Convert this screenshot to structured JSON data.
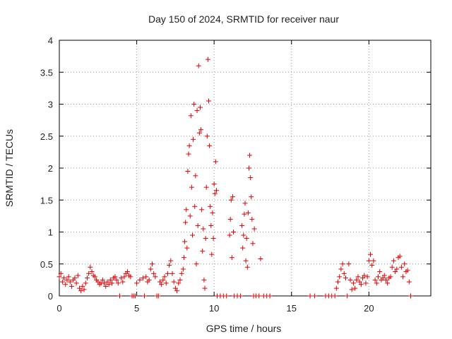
{
  "chart_data": {
    "type": "scatter",
    "title": "Day 150 of 2024, SRMTID for receiver naur",
    "xlabel": "GPS time / hours",
    "ylabel": "SRMTID / TECUs",
    "xlim": [
      0,
      24
    ],
    "ylim": [
      0,
      4
    ],
    "xticks": [
      0,
      5,
      10,
      15,
      20
    ],
    "yticks": [
      0,
      0.5,
      1,
      1.5,
      2,
      2.5,
      3,
      3.5,
      4
    ],
    "ytick_labels": [
      "0",
      "0.5",
      "1",
      "1.5",
      "2",
      "2.5",
      "3",
      "3.5",
      "4"
    ],
    "grid": true,
    "marker": "+",
    "color": "#dd0000",
    "series": [
      {
        "name": "SRMTID",
        "points": [
          [
            0.0,
            0.3
          ],
          [
            0.1,
            0.35
          ],
          [
            0.2,
            0.22
          ],
          [
            0.3,
            0.28
          ],
          [
            0.4,
            0.18
          ],
          [
            0.5,
            0.25
          ],
          [
            0.6,
            0.3
          ],
          [
            0.7,
            0.22
          ],
          [
            0.8,
            0.15
          ],
          [
            0.9,
            0.25
          ],
          [
            1.0,
            0.28
          ],
          [
            1.1,
            0.2
          ],
          [
            1.2,
            0.32
          ],
          [
            1.3,
            0.12
          ],
          [
            1.4,
            0.08
          ],
          [
            1.5,
            0.15
          ],
          [
            1.6,
            0.1
          ],
          [
            1.7,
            0.2
          ],
          [
            1.8,
            0.28
          ],
          [
            1.9,
            0.35
          ],
          [
            2.0,
            0.45
          ],
          [
            2.1,
            0.38
          ],
          [
            2.2,
            0.32
          ],
          [
            2.3,
            0.3
          ],
          [
            2.4,
            0.25
          ],
          [
            2.5,
            0.22
          ],
          [
            2.6,
            0.18
          ],
          [
            2.7,
            0.2
          ],
          [
            2.8,
            0.25
          ],
          [
            2.9,
            0.2
          ],
          [
            3.0,
            0.15
          ],
          [
            3.1,
            0.22
          ],
          [
            3.2,
            0.18
          ],
          [
            3.3,
            0.25
          ],
          [
            3.4,
            0.2
          ],
          [
            3.5,
            0.28
          ],
          [
            3.6,
            0.3
          ],
          [
            3.7,
            0.25
          ],
          [
            3.8,
            0.2
          ],
          [
            3.9,
            0.0
          ],
          [
            4.0,
            0.28
          ],
          [
            4.1,
            0.22
          ],
          [
            4.2,
            0.3
          ],
          [
            4.3,
            0.35
          ],
          [
            4.4,
            0.38
          ],
          [
            4.5,
            0.32
          ],
          [
            4.6,
            0.3
          ],
          [
            4.7,
            0.0
          ],
          [
            4.8,
            0.0
          ],
          [
            4.9,
            0.0
          ],
          [
            5.0,
            0.2
          ],
          [
            5.2,
            0.25
          ],
          [
            5.4,
            0.28
          ],
          [
            5.5,
            0.0
          ],
          [
            5.6,
            0.3
          ],
          [
            5.7,
            0.22
          ],
          [
            5.8,
            0.25
          ],
          [
            5.9,
            0.42
          ],
          [
            6.0,
            0.5
          ],
          [
            6.1,
            0.35
          ],
          [
            6.2,
            0.3
          ],
          [
            6.3,
            0.0
          ],
          [
            6.4,
            0.0
          ],
          [
            6.5,
            0.22
          ],
          [
            6.6,
            0.18
          ],
          [
            6.7,
            0.25
          ],
          [
            6.8,
            0.3
          ],
          [
            6.9,
            0.2
          ],
          [
            7.0,
            0.35
          ],
          [
            7.1,
            0.48
          ],
          [
            7.2,
            0.55
          ],
          [
            7.3,
            0.35
          ],
          [
            7.4,
            0.22
          ],
          [
            7.5,
            0.12
          ],
          [
            7.6,
            0.08
          ],
          [
            7.7,
            0.2
          ],
          [
            7.8,
            0.25
          ],
          [
            7.9,
            0.35
          ],
          [
            8.0,
            0.42
          ],
          [
            8.05,
            0.6
          ],
          [
            8.1,
            0.85
          ],
          [
            8.15,
            1.15
          ],
          [
            8.2,
            1.35
          ],
          [
            8.25,
            0.75
          ],
          [
            8.3,
            1.95
          ],
          [
            8.35,
            2.22
          ],
          [
            8.4,
            2.35
          ],
          [
            8.45,
            1.25
          ],
          [
            8.5,
            2.82
          ],
          [
            8.55,
            1.7
          ],
          [
            8.6,
            0.95
          ],
          [
            8.65,
            2.45
          ],
          [
            8.7,
            3.0
          ],
          [
            8.75,
            1.4
          ],
          [
            8.8,
            1.88
          ],
          [
            8.85,
            0.5
          ],
          [
            8.9,
            2.9
          ],
          [
            8.95,
            1.1
          ],
          [
            9.0,
            3.6
          ],
          [
            9.05,
            2.55
          ],
          [
            9.1,
            2.95
          ],
          [
            9.15,
            2.6
          ],
          [
            9.2,
            1.35
          ],
          [
            9.25,
            0.7
          ],
          [
            9.3,
            1.05
          ],
          [
            9.35,
            0.25
          ],
          [
            9.4,
            0.12
          ],
          [
            9.45,
            0.9
          ],
          [
            9.5,
            1.7
          ],
          [
            9.55,
            2.5
          ],
          [
            9.6,
            3.7
          ],
          [
            9.65,
            3.05
          ],
          [
            9.7,
            2.35
          ],
          [
            9.75,
            1.4
          ],
          [
            9.8,
            1.1
          ],
          [
            9.85,
            0.65
          ],
          [
            9.9,
            1.3
          ],
          [
            9.95,
            0.9
          ],
          [
            10.0,
            1.75
          ],
          [
            10.05,
            1.6
          ],
          [
            10.1,
            2.1
          ],
          [
            10.15,
            1.65
          ],
          [
            10.2,
            0.0
          ],
          [
            10.4,
            0.0
          ],
          [
            10.6,
            0.0
          ],
          [
            10.8,
            0.0
          ],
          [
            11.0,
            0.95
          ],
          [
            11.05,
            1.2
          ],
          [
            11.1,
            1.5
          ],
          [
            11.15,
            0.6
          ],
          [
            11.2,
            1.55
          ],
          [
            11.25,
            1.0
          ],
          [
            11.3,
            0.0
          ],
          [
            11.5,
            0.0
          ],
          [
            11.7,
            0.0
          ],
          [
            11.8,
            1.1
          ],
          [
            11.85,
            0.75
          ],
          [
            11.9,
            0.95
          ],
          [
            11.95,
            1.28
          ],
          [
            12.0,
            1.45
          ],
          [
            12.05,
            0.55
          ],
          [
            12.1,
            0.9
          ],
          [
            12.15,
            0.45
          ],
          [
            12.2,
            1.3
          ],
          [
            12.25,
            2.0
          ],
          [
            12.3,
            2.2
          ],
          [
            12.35,
            1.85
          ],
          [
            12.4,
            1.55
          ],
          [
            12.45,
            1.2
          ],
          [
            12.5,
            0.82
          ],
          [
            12.55,
            0.0
          ],
          [
            12.6,
            1.05
          ],
          [
            12.7,
            0.0
          ],
          [
            12.9,
            0.0
          ],
          [
            13.0,
            0.58
          ],
          [
            13.2,
            0.0
          ],
          [
            13.4,
            0.0
          ],
          [
            13.6,
            0.0
          ],
          [
            16.2,
            0.0
          ],
          [
            16.5,
            0.0
          ],
          [
            17.2,
            0.0
          ],
          [
            17.4,
            0.0
          ],
          [
            17.6,
            0.0
          ],
          [
            17.8,
            0.0
          ],
          [
            17.9,
            0.12
          ],
          [
            18.0,
            0.22
          ],
          [
            18.1,
            0.3
          ],
          [
            18.2,
            0.42
          ],
          [
            18.3,
            0.5
          ],
          [
            18.4,
            0.35
          ],
          [
            18.5,
            0.28
          ],
          [
            18.6,
            0.0
          ],
          [
            18.7,
            0.5
          ],
          [
            18.8,
            0.25
          ],
          [
            18.9,
            0.1
          ],
          [
            19.0,
            0.2
          ],
          [
            19.1,
            0.12
          ],
          [
            19.2,
            0.25
          ],
          [
            19.3,
            0.3
          ],
          [
            19.4,
            0.22
          ],
          [
            19.5,
            0.18
          ],
          [
            19.6,
            0.28
          ],
          [
            19.7,
            0.32
          ],
          [
            19.8,
            0.2
          ],
          [
            19.9,
            0.3
          ],
          [
            20.0,
            0.55
          ],
          [
            20.1,
            0.65
          ],
          [
            20.2,
            0.48
          ],
          [
            20.3,
            0.55
          ],
          [
            20.4,
            0.25
          ],
          [
            20.5,
            0.2
          ],
          [
            20.6,
            0.3
          ],
          [
            20.7,
            0.38
          ],
          [
            20.8,
            0.25
          ],
          [
            20.9,
            0.28
          ],
          [
            21.0,
            0.32
          ],
          [
            21.1,
            0.25
          ],
          [
            21.2,
            0.2
          ],
          [
            21.3,
            0.28
          ],
          [
            21.4,
            0.3
          ],
          [
            21.5,
            0.45
          ],
          [
            21.6,
            0.55
          ],
          [
            21.7,
            0.38
          ],
          [
            21.8,
            0.42
          ],
          [
            21.9,
            0.6
          ],
          [
            22.0,
            0.62
          ],
          [
            22.1,
            0.45
          ],
          [
            22.2,
            0.3
          ],
          [
            22.3,
            0.5
          ],
          [
            22.4,
            0.38
          ],
          [
            22.5,
            0.4
          ],
          [
            22.6,
            0.22
          ],
          [
            22.7,
            0.0
          ]
        ]
      }
    ]
  }
}
